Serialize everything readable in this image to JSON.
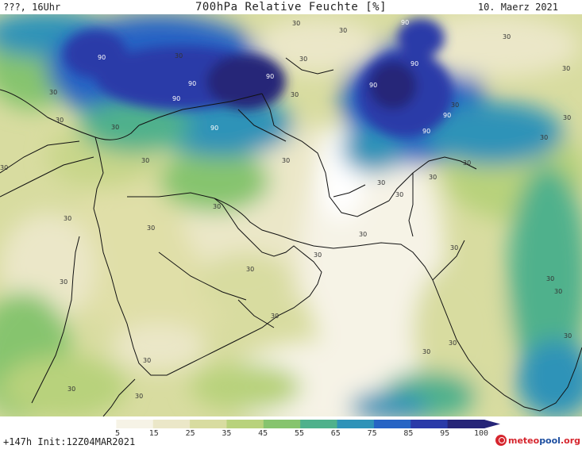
{
  "header": {
    "left": "???, 16Uhr",
    "title": "700hPa Relative Feuchte [%]",
    "right": "10. Maerz 2021"
  },
  "footer": {
    "init": "+147h  Init:12Z04MAR2021",
    "logo_prefix": "meteo",
    "logo_mid": "pool",
    "logo_suffix": ".org"
  },
  "colorbar": {
    "ticks": [
      "5",
      "15",
      "25",
      "35",
      "45",
      "55",
      "65",
      "75",
      "85",
      "95",
      "100"
    ],
    "colors": [
      "#ffffff",
      "#f6f3e6",
      "#ebe7c8",
      "#d8dca0",
      "#b8d27c",
      "#86c46e",
      "#4fb18c",
      "#2f93b8",
      "#2664c4",
      "#2a3aa8",
      "#262578"
    ]
  },
  "map": {
    "contour_labels": [
      "30",
      "90"
    ]
  }
}
